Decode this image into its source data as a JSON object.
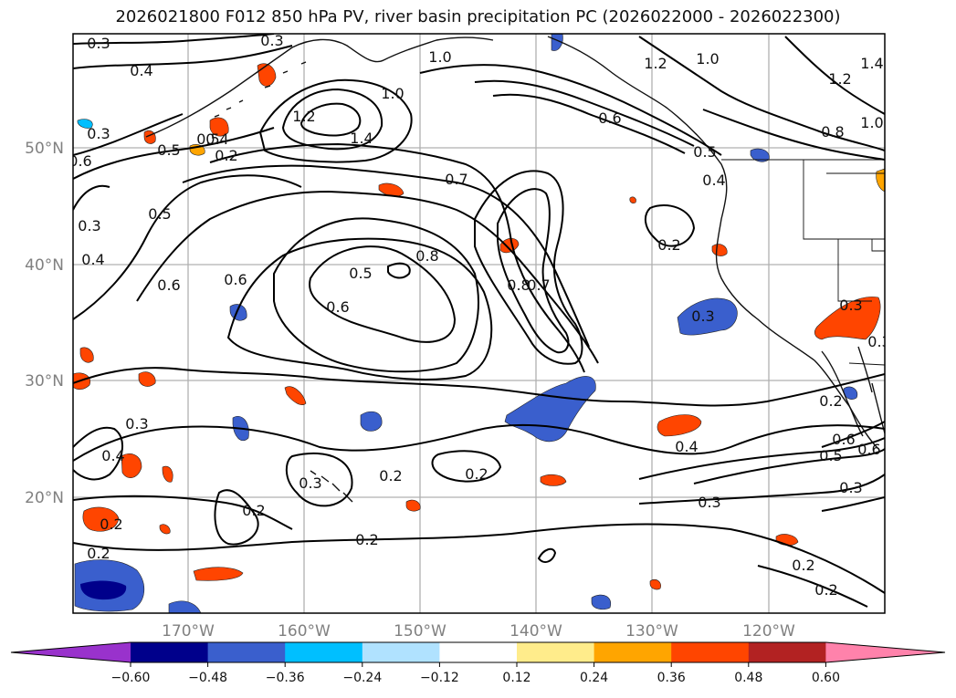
{
  "title": "2026021800 F012 850 hPa PV, river basin precipitation PC (2026022000 - 2026022300)",
  "map": {
    "lon_ticks": [
      "170°W",
      "160°W",
      "150°W",
      "140°W",
      "130°W",
      "120°W"
    ],
    "lat_ticks": [
      "50°N",
      "40°N",
      "30°N",
      "20°N"
    ],
    "contour_labels": [
      "0.3",
      "0.4",
      "0.5",
      "0.6",
      "0.7",
      "0.8",
      "1.0",
      "1.2",
      "1.4",
      "0.6",
      "0.5",
      "0.4",
      "0.3",
      "0.2",
      "0.2",
      "0.2",
      "0.2",
      "0.3",
      "0.4",
      "0.5",
      "0.6",
      "0.3",
      "0.8",
      "0.7",
      "1.0",
      "1.2",
      "1.4",
      "1.0",
      "0.8",
      "0.4",
      "0.6",
      "0.2",
      "0.3",
      "0.5",
      "0.6",
      "0.5",
      "0.4",
      "0.3",
      "0.2",
      "0.2",
      "0.6",
      "0.3",
      "0.3",
      "1.2",
      "1.0",
      "0.2",
      "0.3",
      "0.2",
      "0.4",
      "0.3",
      "0.5",
      "0.6",
      "0.3",
      "0.2",
      "0.2"
    ]
  },
  "colorbar": {
    "ticks": [
      "−0.60",
      "−0.48",
      "−0.36",
      "−0.24",
      "−0.12",
      "0.12",
      "0.24",
      "0.36",
      "0.48",
      "0.60"
    ],
    "colors": [
      "#9932cc",
      "#00008b",
      "#3a5fcd",
      "#00bfff",
      "#b0e2ff",
      "#ffffff",
      "#ffec8b",
      "#ffa500",
      "#ff4500",
      "#b22222",
      "#ff82ab"
    ]
  }
}
